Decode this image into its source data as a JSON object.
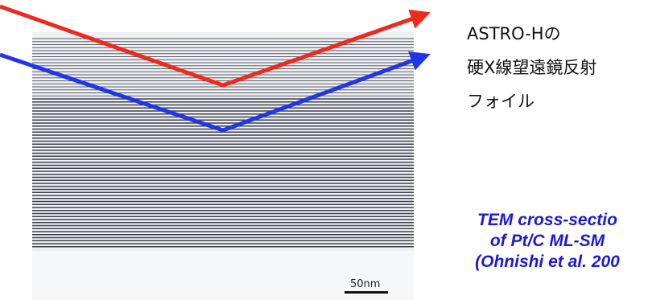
{
  "labels": {
    "line1": "ASTRO-Hの",
    "line2": "硬X線望遠鏡反射",
    "line3": "フォイル"
  },
  "caption": {
    "line1": "TEM cross-sectio",
    "line2": "of Pt/C ML-SM",
    "line3": "(Ohnishi et al. 200",
    "color": "#1a1ad6"
  },
  "image": {
    "scale_label": "50nm"
  },
  "colors": {
    "ray_upper": "#ee2a1e",
    "ray_lower": "#2036e8",
    "film_background": "#eef0f3",
    "layer_line": "#2a2c3a"
  }
}
